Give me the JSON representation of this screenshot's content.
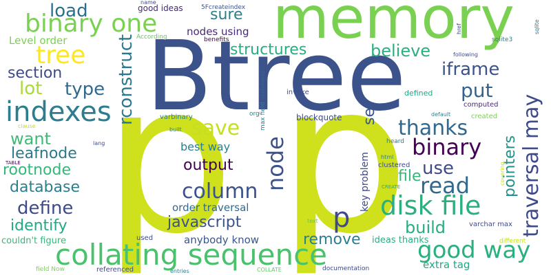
{
  "colors": {
    "background": "#ffffff",
    "palette": [
      "#3b528b",
      "#440154",
      "#21918c",
      "#5ec962",
      "#fde725",
      "#cfe11c"
    ]
  },
  "words": [
    {
      "id": "w0",
      "text": "Btree",
      "color": "#3b528b"
    },
    {
      "id": "w1",
      "text": "p",
      "color": "#cfe11c"
    },
    {
      "id": "w2",
      "text": "p",
      "color": "#cfe11c"
    },
    {
      "id": "w3",
      "text": "memory",
      "color": "#7ad151"
    },
    {
      "id": "w4",
      "text": "collating sequence",
      "color": "#4ac16d"
    },
    {
      "id": "w5",
      "text": "binary one",
      "color": "#7ad151"
    },
    {
      "id": "w6",
      "text": "indexes",
      "color": "#2c7e8e"
    },
    {
      "id": "w7",
      "text": "tree",
      "color": "#fde725"
    },
    {
      "id": "w8",
      "text": "load",
      "color": "#2a6f8e"
    },
    {
      "id": "w9",
      "text": "disk file",
      "color": "#2ab07f"
    },
    {
      "id": "w10",
      "text": "good way",
      "color": "#2ab07f"
    },
    {
      "id": "w11",
      "text": "column",
      "color": "#3b528b"
    },
    {
      "id": "w12",
      "text": "binary",
      "color": "#440154"
    },
    {
      "id": "w13",
      "text": "read",
      "color": "#31688e"
    },
    {
      "id": "w14",
      "text": "thanks",
      "color": "#31688e"
    },
    {
      "id": "w15",
      "text": "save",
      "color": "#c5e021"
    },
    {
      "id": "w16",
      "text": "node",
      "color": "#3b528b"
    },
    {
      "id": "w17",
      "text": "traversal may",
      "color": "#3e4a89"
    },
    {
      "id": "w18",
      "text": "rconstruct",
      "color": "#2a788e"
    },
    {
      "id": "w19",
      "text": "structures",
      "color": "#27ad81"
    },
    {
      "id": "w20",
      "text": "believe",
      "color": "#2ab07f"
    },
    {
      "id": "w21",
      "text": "iframe",
      "color": "#3b528b"
    },
    {
      "id": "w22",
      "text": "put",
      "color": "#33638d"
    },
    {
      "id": "w23",
      "text": "type",
      "color": "#31688e"
    },
    {
      "id": "w24",
      "text": "section",
      "color": "#3e4a89"
    },
    {
      "id": "w25",
      "text": "lot",
      "color": "#a8db34"
    },
    {
      "id": "w26",
      "text": "want",
      "color": "#3dbc74"
    },
    {
      "id": "w27",
      "text": "leafnode",
      "color": "#2a788e"
    },
    {
      "id": "w28",
      "text": "rootnode",
      "color": "#35b779"
    },
    {
      "id": "w29",
      "text": "database",
      "color": "#2c7e8e"
    },
    {
      "id": "w30",
      "text": "define",
      "color": "#3e4a89"
    },
    {
      "id": "w31",
      "text": "identify",
      "color": "#22a884"
    },
    {
      "id": "w32",
      "text": "output",
      "color": "#440154"
    },
    {
      "id": "w33",
      "text": "javascript",
      "color": "#3b528b"
    },
    {
      "id": "w34",
      "text": "best way",
      "color": "#2c7e8e"
    },
    {
      "id": "w35",
      "text": "order traversal",
      "color": "#31688e"
    },
    {
      "id": "w36",
      "text": "pointers",
      "color": "#21918c"
    },
    {
      "id": "w37",
      "text": "use",
      "color": "#3e4a89"
    },
    {
      "id": "w38",
      "text": "file",
      "color": "#35b779"
    },
    {
      "id": "w39",
      "text": "set",
      "color": "#39568c"
    },
    {
      "id": "w40",
      "text": "p",
      "color": "#3e4a89"
    },
    {
      "id": "w41",
      "text": "remove",
      "color": "#2c7e8e"
    },
    {
      "id": "w42",
      "text": "build",
      "color": "#27ad81"
    },
    {
      "id": "w43",
      "text": "sure",
      "color": "#2c7e8e"
    },
    {
      "id": "w44",
      "text": "nodes using",
      "color": "#482878"
    },
    {
      "id": "w45",
      "text": "Level order",
      "color": "#7ad151"
    },
    {
      "id": "w46",
      "text": "key problem",
      "color": "#3e4a89"
    },
    {
      "id": "w47",
      "text": "anybody know",
      "color": "#39568c"
    },
    {
      "id": "w48",
      "text": "ideas thanks",
      "color": "#2ab07f"
    },
    {
      "id": "w49",
      "text": "extra tag",
      "color": "#22a884"
    },
    {
      "id": "w50",
      "text": "couldn't figure",
      "color": "#35b779"
    },
    {
      "id": "w51",
      "text": "good ideas",
      "color": "#482878"
    },
    {
      "id": "w52",
      "text": "5Fcreateindex",
      "color": "#3b528b"
    },
    {
      "id": "w53",
      "text": "name",
      "color": "#3e4a89"
    },
    {
      "id": "w54",
      "text": "href",
      "color": "#3e4a89"
    },
    {
      "id": "w55",
      "text": "sqlite3",
      "color": "#2c7e8e"
    },
    {
      "id": "w56",
      "text": "sqlite",
      "color": "#2a788e"
    },
    {
      "id": "w57",
      "text": "following",
      "color": "#3e4a89"
    },
    {
      "id": "w58",
      "text": "According",
      "color": "#5ec962"
    },
    {
      "id": "w59",
      "text": "benefits",
      "color": "#440154"
    },
    {
      "id": "w60",
      "text": "statement",
      "color": "#31688e"
    },
    {
      "id": "w61",
      "text": "max field",
      "color": "#2c7e8e"
    },
    {
      "id": "w62",
      "text": "invoke",
      "color": "#3e4a89"
    },
    {
      "id": "w63",
      "text": "defined",
      "color": "#22a884"
    },
    {
      "id": "w64",
      "text": "computed",
      "color": "#482878"
    },
    {
      "id": "w65",
      "text": "default",
      "color": "#2c7e8e"
    },
    {
      "id": "w66",
      "text": "created",
      "color": "#7ad151"
    },
    {
      "id": "w67",
      "text": "org",
      "color": "#2c7e8e"
    },
    {
      "id": "w68",
      "text": "varbinary",
      "color": "#2c7e8e"
    },
    {
      "id": "w69",
      "text": "blockquote",
      "color": "#3e4a89"
    },
    {
      "id": "w70",
      "text": "built",
      "color": "#2c7e8e"
    },
    {
      "id": "w71",
      "text": "clause",
      "color": "#c5e021"
    },
    {
      "id": "w72",
      "text": "lang",
      "color": "#3e4a89"
    },
    {
      "id": "w73",
      "text": "TABLE",
      "color": "#440154"
    },
    {
      "id": "w74",
      "text": "heard",
      "color": "#2c7e8e"
    },
    {
      "id": "w75",
      "text": "html",
      "color": "#2c7e8e"
    },
    {
      "id": "w76",
      "text": "clustered",
      "color": "#3e4a89"
    },
    {
      "id": "w77",
      "text": "covering",
      "color": "#c5e021"
    },
    {
      "id": "w78",
      "text": "CREATE",
      "color": "#22a884"
    },
    {
      "id": "w79",
      "text": "used",
      "color": "#3e4a89"
    },
    {
      "id": "w80",
      "text": "varchar max",
      "color": "#3e4a89"
    },
    {
      "id": "w81",
      "text": "different",
      "color": "#c5e021"
    },
    {
      "id": "w82",
      "text": "text",
      "color": "#5ec962"
    },
    {
      "id": "w83",
      "text": "field Now",
      "color": "#7ad151"
    },
    {
      "id": "w84",
      "text": "referenced",
      "color": "#3e4a89"
    },
    {
      "id": "w85",
      "text": "entries",
      "color": "#2c7e8e"
    },
    {
      "id": "w86",
      "text": "COLLATE",
      "color": "#5ec962"
    },
    {
      "id": "w87",
      "text": "documentation",
      "color": "#3e4a89"
    }
  ]
}
